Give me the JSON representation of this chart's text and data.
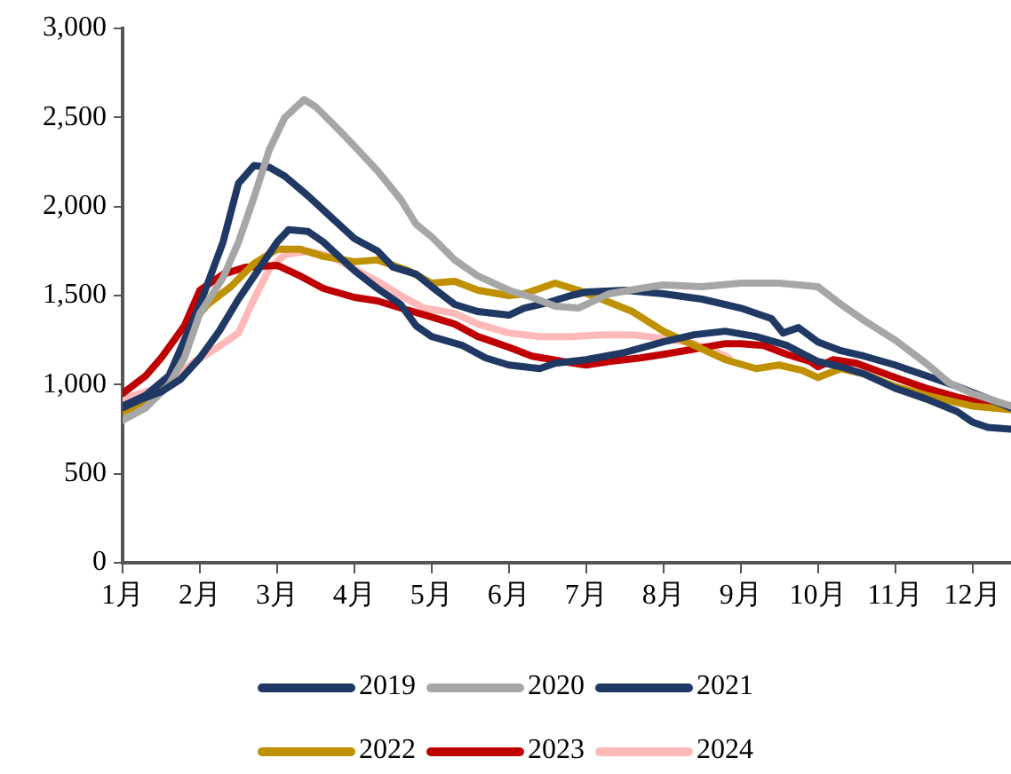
{
  "chart_data": {
    "type": "line",
    "legend": "bottom",
    "grid": false,
    "marker": "none",
    "line_style": "solid",
    "xlim": [
      1,
      12.5
    ],
    "xticks": [
      {
        "value": 1,
        "label": "1月"
      },
      {
        "value": 2,
        "label": "2月"
      },
      {
        "value": 3,
        "label": "3月"
      },
      {
        "value": 4,
        "label": "4月"
      },
      {
        "value": 5,
        "label": "5月"
      },
      {
        "value": 6,
        "label": "6月"
      },
      {
        "value": 7,
        "label": "7月"
      },
      {
        "value": 8,
        "label": "8月"
      },
      {
        "value": 9,
        "label": "9月"
      },
      {
        "value": 10,
        "label": "10月"
      },
      {
        "value": 11,
        "label": "11月"
      },
      {
        "value": 12,
        "label": "12月"
      }
    ],
    "ylim": [
      0,
      3000
    ],
    "yticks": [
      0,
      500,
      {
        "value": 1000,
        "label": "1,000"
      },
      {
        "value": 1500,
        "label": "1,500"
      },
      {
        "value": 2000,
        "label": "2,000"
      },
      {
        "value": 2500,
        "label": "2,500"
      },
      {
        "value": 3000,
        "label": "3,000"
      }
    ],
    "series": [
      {
        "name": "2019",
        "color": "#1f3864",
        "x": [
          1,
          1.25,
          1.5,
          1.75,
          2,
          2.25,
          2.5,
          2.75,
          3,
          3.15,
          3.4,
          3.6,
          3.8,
          4,
          4.3,
          4.6,
          4.8,
          5,
          5.4,
          5.7,
          6,
          6.4,
          6.6,
          7,
          7.5,
          8,
          8.4,
          8.8,
          9.2,
          9.6,
          10,
          10.3,
          10.6,
          11,
          11.4,
          11.8,
          12,
          12.2,
          12.5
        ],
        "values": [
          870,
          920,
          960,
          1030,
          1150,
          1300,
          1480,
          1640,
          1800,
          1870,
          1860,
          1800,
          1720,
          1640,
          1540,
          1450,
          1330,
          1270,
          1220,
          1150,
          1110,
          1090,
          1120,
          1140,
          1180,
          1240,
          1280,
          1300,
          1270,
          1220,
          1130,
          1100,
          1060,
          980,
          920,
          850,
          790,
          760,
          750
        ]
      },
      {
        "name": "2020",
        "color": "#a6a6a6",
        "x": [
          1,
          1.3,
          1.6,
          1.8,
          2,
          2.3,
          2.5,
          2.7,
          2.9,
          3.1,
          3.35,
          3.5,
          3.8,
          4,
          4.3,
          4.6,
          4.8,
          5,
          5.3,
          5.6,
          6,
          6.3,
          6.6,
          6.9,
          7.3,
          7.7,
          8,
          8.5,
          9,
          9.5,
          10,
          10.3,
          10.6,
          11,
          11.4,
          11.7,
          12,
          12.5
        ],
        "values": [
          800,
          870,
          1000,
          1150,
          1400,
          1600,
          1800,
          2050,
          2320,
          2500,
          2600,
          2560,
          2430,
          2340,
          2200,
          2040,
          1900,
          1830,
          1700,
          1610,
          1530,
          1490,
          1440,
          1430,
          1510,
          1540,
          1560,
          1550,
          1570,
          1570,
          1550,
          1450,
          1360,
          1250,
          1120,
          1010,
          950,
          880
        ]
      },
      {
        "name": "2021",
        "color": "#1f3864",
        "x": [
          1,
          1.3,
          1.6,
          1.8,
          2,
          2.3,
          2.5,
          2.7,
          2.9,
          3.1,
          3.4,
          3.7,
          4,
          4.3,
          4.5,
          4.8,
          5,
          5.3,
          5.6,
          6,
          6.2,
          6.5,
          6.8,
          7,
          7.5,
          8,
          8.5,
          9,
          9.4,
          9.55,
          9.75,
          10,
          10.3,
          10.6,
          11,
          11.4,
          11.8,
          12.1,
          12.5
        ],
        "values": [
          880,
          940,
          1050,
          1250,
          1450,
          1800,
          2130,
          2230,
          2220,
          2170,
          2060,
          1940,
          1820,
          1750,
          1660,
          1620,
          1550,
          1450,
          1410,
          1390,
          1430,
          1460,
          1500,
          1520,
          1530,
          1510,
          1480,
          1430,
          1370,
          1290,
          1320,
          1240,
          1190,
          1160,
          1110,
          1050,
          990,
          940,
          870
        ]
      },
      {
        "name": "2022",
        "color": "#bf9000",
        "x": [
          1,
          1.3,
          1.6,
          1.9,
          2.1,
          2.4,
          2.7,
          3,
          3.3,
          3.6,
          4,
          4.3,
          4.7,
          5,
          5.3,
          5.6,
          6,
          6.2,
          6.6,
          6.9,
          7.2,
          7.6,
          8,
          8.4,
          8.8,
          9.2,
          9.5,
          9.8,
          10,
          10.3,
          10.6,
          11,
          11.4,
          11.8,
          12,
          12.5
        ],
        "values": [
          845,
          905,
          1000,
          1350,
          1450,
          1550,
          1680,
          1760,
          1760,
          1720,
          1690,
          1700,
          1640,
          1570,
          1580,
          1530,
          1500,
          1510,
          1570,
          1530,
          1480,
          1410,
          1300,
          1220,
          1140,
          1090,
          1110,
          1080,
          1040,
          1090,
          1060,
          990,
          940,
          900,
          880,
          860
        ]
      },
      {
        "name": "2023",
        "color": "#c00000",
        "x": [
          1,
          1.3,
          1.5,
          1.8,
          2,
          2.3,
          2.6,
          3,
          3.3,
          3.6,
          4,
          4.3,
          4.6,
          5,
          5.3,
          5.6,
          6,
          6.3,
          6.7,
          7,
          7.3,
          7.7,
          8,
          8.4,
          8.8,
          9,
          9.3,
          9.6,
          9.9,
          10,
          10.2,
          10.5,
          11,
          11.4,
          11.8,
          12,
          12.5
        ],
        "values": [
          950,
          1050,
          1150,
          1330,
          1530,
          1620,
          1660,
          1670,
          1610,
          1540,
          1490,
          1470,
          1430,
          1380,
          1340,
          1270,
          1210,
          1160,
          1130,
          1110,
          1130,
          1150,
          1170,
          1200,
          1230,
          1230,
          1220,
          1170,
          1130,
          1100,
          1140,
          1120,
          1040,
          980,
          930,
          910,
          880
        ]
      },
      {
        "name": "2024",
        "color": "#ffb9b9",
        "x": [
          1,
          1.3,
          1.6,
          1.9,
          2.2,
          2.5,
          2.7,
          2.9,
          3.1,
          3.4,
          3.7,
          4,
          4.3,
          4.6,
          4.9,
          5.3,
          5.6,
          6,
          6.4,
          6.8,
          7.2,
          7.6,
          8,
          8.4,
          8.7,
          8.85
        ],
        "values": [
          920,
          960,
          1010,
          1120,
          1200,
          1290,
          1480,
          1650,
          1730,
          1750,
          1720,
          1650,
          1580,
          1500,
          1430,
          1400,
          1340,
          1290,
          1270,
          1270,
          1280,
          1280,
          1260,
          1230,
          1180,
          1150
        ]
      }
    ]
  }
}
